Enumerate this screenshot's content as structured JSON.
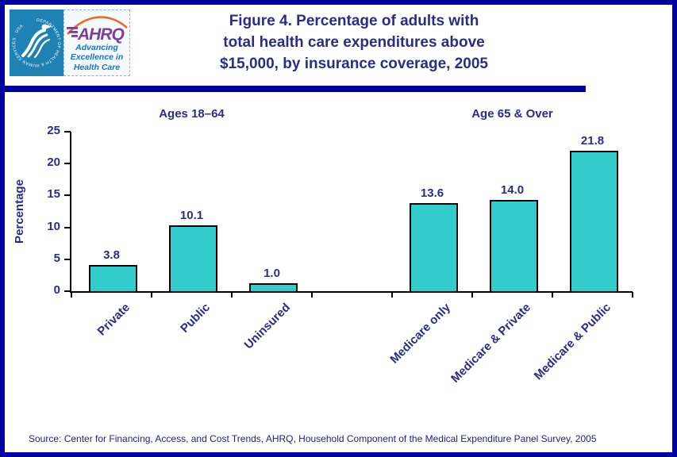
{
  "header": {
    "logo": {
      "hhs_ring_text": "DEPARTMENT OF HEALTH & HUMAN SERVICES · USA",
      "ahrq_acronym": "AHRQ",
      "ahrq_tagline": "Advancing\nExcellence in\nHealth Care"
    },
    "title": "Figure 4. Percentage of adults with\ntotal health care expenditures above\n$15,000, by insurance coverage, 2005"
  },
  "chart_data": {
    "type": "bar",
    "title": "Figure 4. Percentage of adults with total health care expenditures above $15,000, by insurance coverage, 2005",
    "xlabel": "",
    "ylabel": "Percentage",
    "ylim": [
      0,
      25
    ],
    "yticks": [
      0,
      5,
      10,
      15,
      20,
      25
    ],
    "grid": false,
    "value_labels": true,
    "bar_color": "#33CCCC",
    "groups": [
      {
        "label": "Ages 18–64",
        "categories": [
          "Private",
          "Public",
          "Uninsured"
        ],
        "values": [
          3.8,
          10.1,
          1.0
        ]
      },
      {
        "label": "Age 65 & Over",
        "categories": [
          "Medicare only",
          "Medicare & Private",
          "Medicare & Public"
        ],
        "values": [
          13.6,
          14.0,
          21.8
        ]
      }
    ]
  },
  "footer": {
    "source": "Source: Center for Financing, Access, and Cost Trends, AHRQ, Household Component of the Medical Expenditure Panel Survey, 2005"
  },
  "colors": {
    "frame": "#0000A0",
    "navy": "#2B2C86",
    "axis": "#000000",
    "bar_fill": "#33CCCC",
    "bar_border": "#000000",
    "hhs_bg": "#1E82B4",
    "ahrq_purple": "#7B3F99",
    "ahrq_orange": "#F26522",
    "ahrq_blue": "#1B75BC",
    "source_text": "#202282"
  }
}
